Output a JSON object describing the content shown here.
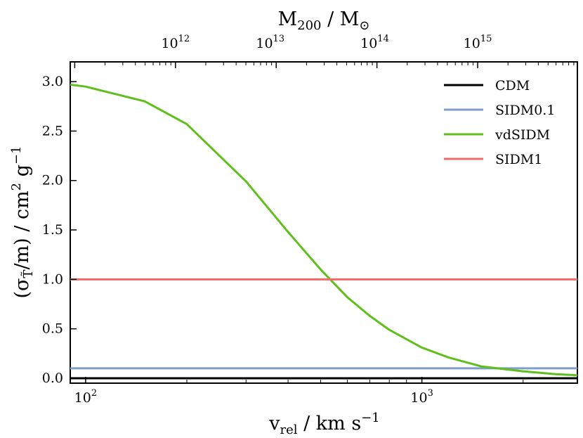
{
  "chart_data": {
    "type": "line",
    "title": "",
    "xlabel": "v_rel / km s^-1",
    "xlabel_parts": {
      "main": "v",
      "sub": "rel",
      "units": " / km s",
      "sup": "−1"
    },
    "ylabel": "(σ_T/m) / cm^2 g^-1",
    "ylabel_parts": {
      "open": "(σ",
      "sub": "T̃",
      "mid": "/m) / cm",
      "sup1": "2",
      "g": " g",
      "sup2": "−1"
    },
    "top_xlabel": "M_200 / M_⊙",
    "top_xlabel_parts": {
      "main": "M",
      "sub": "200",
      "rest": " / M",
      "sub2": "⊙"
    },
    "xscale": "log",
    "xlim": [
      90,
      2900
    ],
    "ylim": [
      -0.05,
      3.2
    ],
    "ylim_display": [
      -0.05,
      3.2
    ],
    "grid": false,
    "legend_position": "upper right",
    "x_tick_labels": [
      {
        "value": 100,
        "base": "10",
        "exp": "2"
      },
      {
        "value": 1000,
        "base": "10",
        "exp": "3"
      }
    ],
    "y_tick_labels": [
      "0.0",
      "0.5",
      "1.0",
      "1.5",
      "2.0",
      "2.5",
      "3.0"
    ],
    "y_tick_values": [
      0.0,
      0.5,
      1.0,
      1.5,
      2.0,
      2.5,
      3.0
    ],
    "top_axis": {
      "scale": "log",
      "tick_labels": [
        {
          "value": 1000000000000.0,
          "base": "10",
          "exp": "12"
        },
        {
          "value": 10000000000000.0,
          "base": "10",
          "exp": "13"
        },
        {
          "value": 100000000000000.0,
          "base": "10",
          "exp": "14"
        },
        {
          "value": 1000000000000000.0,
          "base": "10",
          "exp": "15"
        }
      ],
      "major_at_velocity": [
        185,
        354,
        724,
        1465
      ]
    },
    "series": [
      {
        "name": "CDM",
        "color": "#000000",
        "x": [
          90,
          2900
        ],
        "y": [
          0.0,
          0.0
        ]
      },
      {
        "name": "SIDM0.1",
        "color": "#7f9ec9",
        "x": [
          90,
          2900
        ],
        "y": [
          0.1,
          0.1
        ]
      },
      {
        "name": "vdSIDM",
        "color": "#5fbf1d",
        "x": [
          90,
          100,
          150,
          200,
          300,
          400,
          500,
          600,
          700,
          800,
          1000,
          1200,
          1500,
          2000,
          2500,
          2900
        ],
        "y": [
          2.97,
          2.95,
          2.8,
          2.57,
          1.99,
          1.48,
          1.1,
          0.82,
          0.63,
          0.49,
          0.31,
          0.21,
          0.12,
          0.07,
          0.04,
          0.03
        ]
      },
      {
        "name": "SIDM1",
        "color": "#f06a6a",
        "x": [
          90,
          2900
        ],
        "y": [
          1.0,
          1.0
        ]
      }
    ]
  }
}
